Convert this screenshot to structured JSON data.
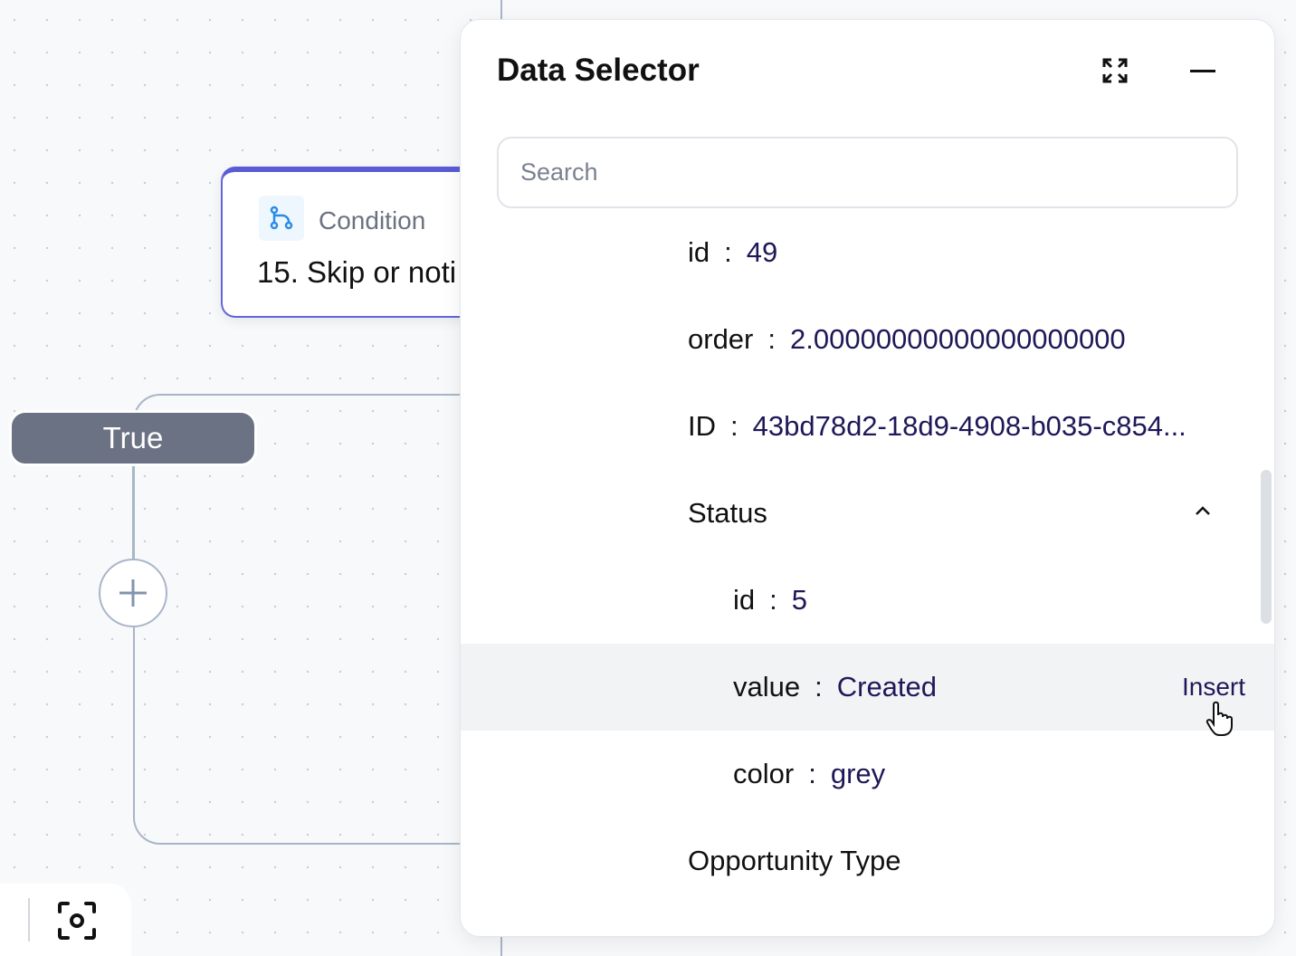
{
  "canvas": {
    "node": {
      "type_label": "Condition",
      "title": "15. Skip or noti"
    },
    "true_label": "True"
  },
  "panel": {
    "title": "Data Selector",
    "search_placeholder": "Search",
    "rows": [
      {
        "key": "id",
        "value": "49"
      },
      {
        "key": "order",
        "value": "2.00000000000000000000"
      },
      {
        "key": "ID",
        "value": "43bd78d2-18d9-4908-b035-c854..."
      },
      {
        "key": "Status",
        "value": ""
      },
      {
        "key": "id",
        "value": "5"
      },
      {
        "key": "value",
        "value": "Created"
      },
      {
        "key": "color",
        "value": "grey"
      },
      {
        "key": "Opportunity Type",
        "value": ""
      }
    ],
    "insert_label": "Insert"
  }
}
